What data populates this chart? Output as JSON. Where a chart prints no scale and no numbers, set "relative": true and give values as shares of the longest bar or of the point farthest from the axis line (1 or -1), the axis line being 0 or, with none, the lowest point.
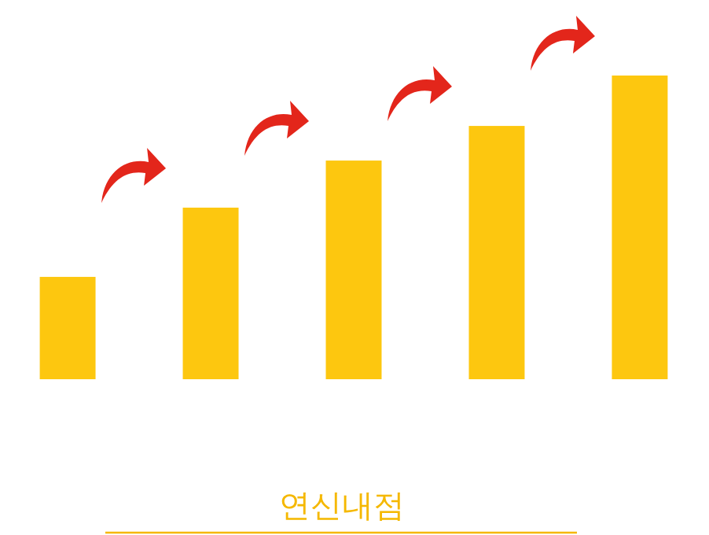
{
  "chart_data": {
    "type": "bar",
    "title": "연신내점",
    "relative": true,
    "categories": [
      null,
      null,
      null,
      null,
      null
    ],
    "values": [
      0.337,
      0.565,
      0.72,
      0.834,
      1
    ],
    "color": "#fdc70f"
  }
}
